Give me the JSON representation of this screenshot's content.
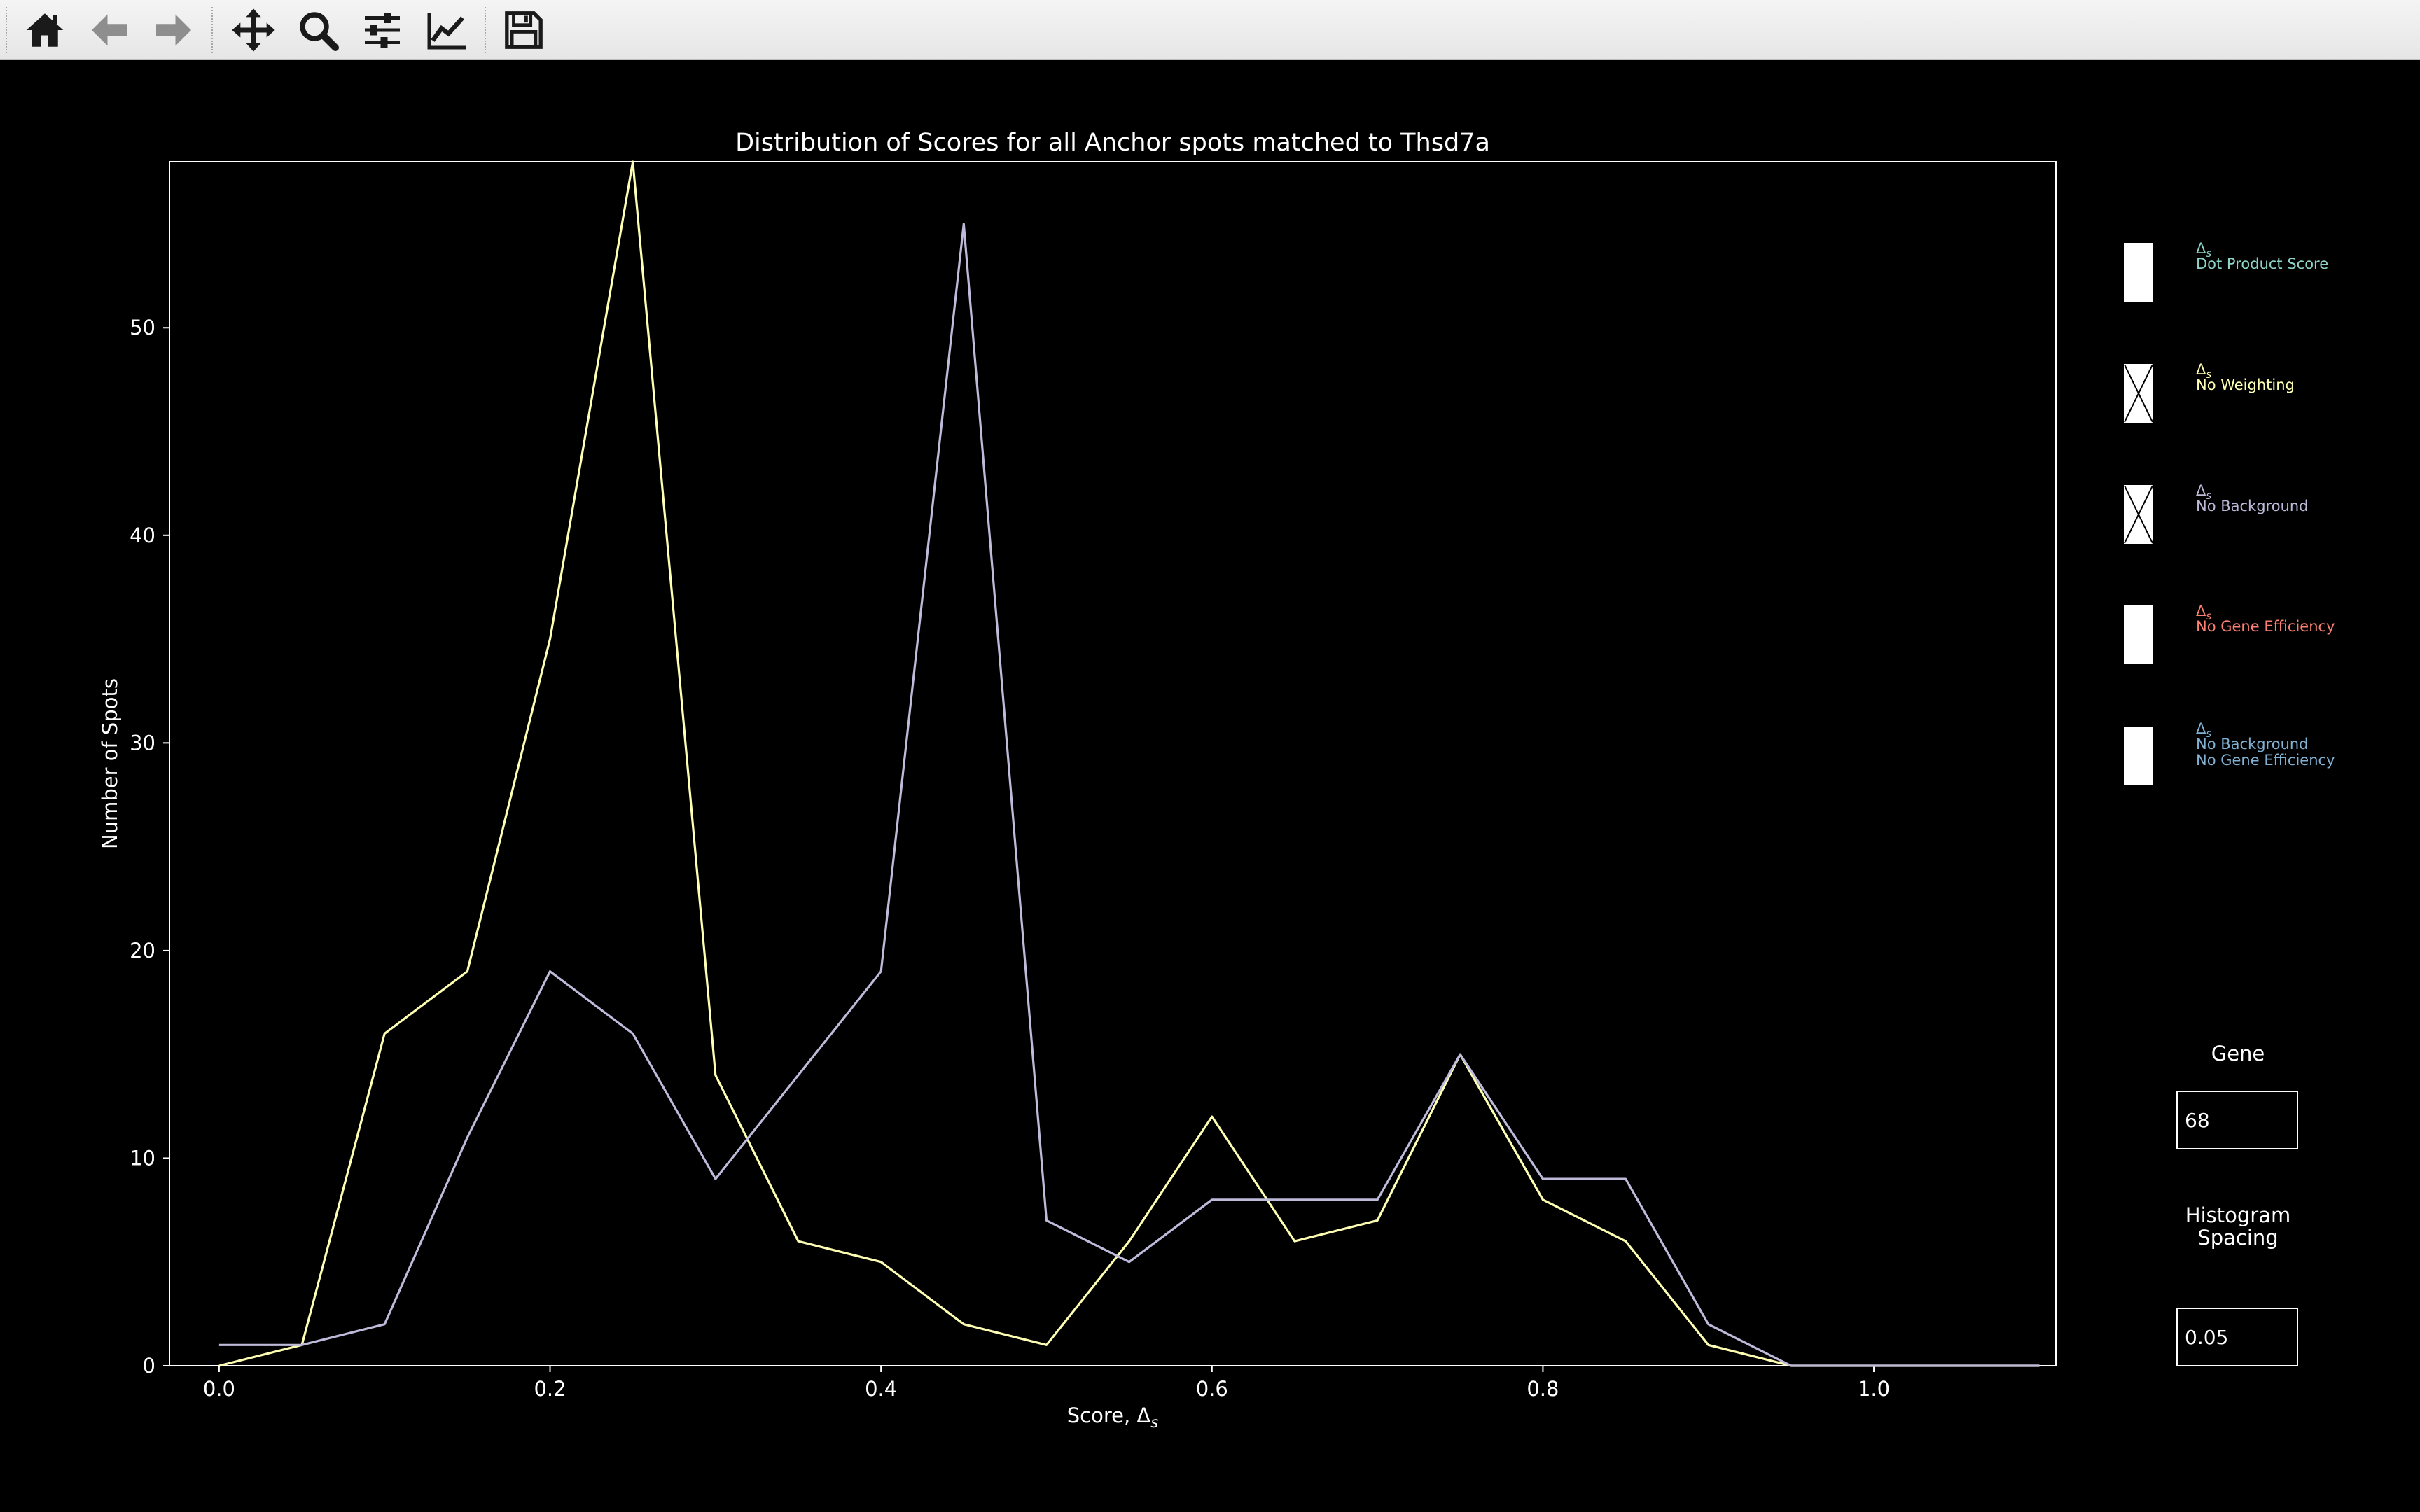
{
  "toolbar": {
    "icons": [
      "home-icon",
      "back-arrow-icon",
      "forward-arrow-icon",
      "pan-move-icon",
      "zoom-magnifier-icon",
      "subplots-sliders-icon",
      "edit-axis-lines-icon",
      "save-floppy-icon"
    ]
  },
  "chart_data": {
    "type": "line",
    "title": "Distribution of Scores for all Anchor spots matched to Thsd7a",
    "xlabel": "Score, Δ",
    "xlabel_sub": "s",
    "ylabel": "Number of Spots",
    "xlim": [
      -0.03,
      1.11
    ],
    "ylim": [
      0,
      58
    ],
    "xticks": [
      "0.0",
      "0.2",
      "0.4",
      "0.6",
      "0.8",
      "1.0"
    ],
    "yticks": [
      "0",
      "10",
      "20",
      "30",
      "40",
      "50"
    ],
    "grid": false,
    "x": [
      0.0,
      0.05,
      0.1,
      0.15,
      0.2,
      0.25,
      0.3,
      0.35,
      0.4,
      0.45,
      0.5,
      0.55,
      0.6,
      0.65,
      0.7,
      0.75,
      0.8,
      0.85,
      0.9,
      0.95,
      1.0,
      1.05,
      1.1
    ],
    "series": [
      {
        "color": "#ffffb3",
        "values": [
          0,
          1,
          16,
          19,
          35,
          58,
          14,
          6,
          5,
          2,
          1,
          6,
          12,
          6,
          7,
          15,
          8,
          6,
          1,
          0,
          0,
          0,
          0
        ]
      },
      {
        "color": "#bebada",
        "values": [
          1,
          1,
          2,
          11,
          19,
          16,
          9,
          14,
          19,
          55,
          7,
          5,
          8,
          8,
          8,
          15,
          9,
          9,
          2,
          0,
          0,
          0,
          0
        ]
      }
    ]
  },
  "legend": {
    "items": [
      {
        "symbol": "Δ",
        "sub": "s",
        "lines": [
          "Dot Product Score"
        ],
        "color": "#8dd3c7",
        "checked": false
      },
      {
        "symbol": "Δ",
        "sub": "s",
        "lines": [
          "No Weighting"
        ],
        "color": "#ffffb3",
        "checked": true
      },
      {
        "symbol": "Δ",
        "sub": "s",
        "lines": [
          "No Background"
        ],
        "color": "#bebada",
        "checked": true
      },
      {
        "symbol": "Δ",
        "sub": "s",
        "lines": [
          "No Gene Efficiency"
        ],
        "color": "#fb8072",
        "checked": false
      },
      {
        "symbol": "Δ",
        "sub": "s",
        "lines": [
          "No Background",
          "No Gene Efficiency"
        ],
        "color": "#80b1d3",
        "checked": false
      }
    ]
  },
  "controls": {
    "gene_label": "Gene",
    "gene_value": "68",
    "spacing_label_line1": "Histogram",
    "spacing_label_line2": "Spacing",
    "spacing_value": "0.05"
  }
}
